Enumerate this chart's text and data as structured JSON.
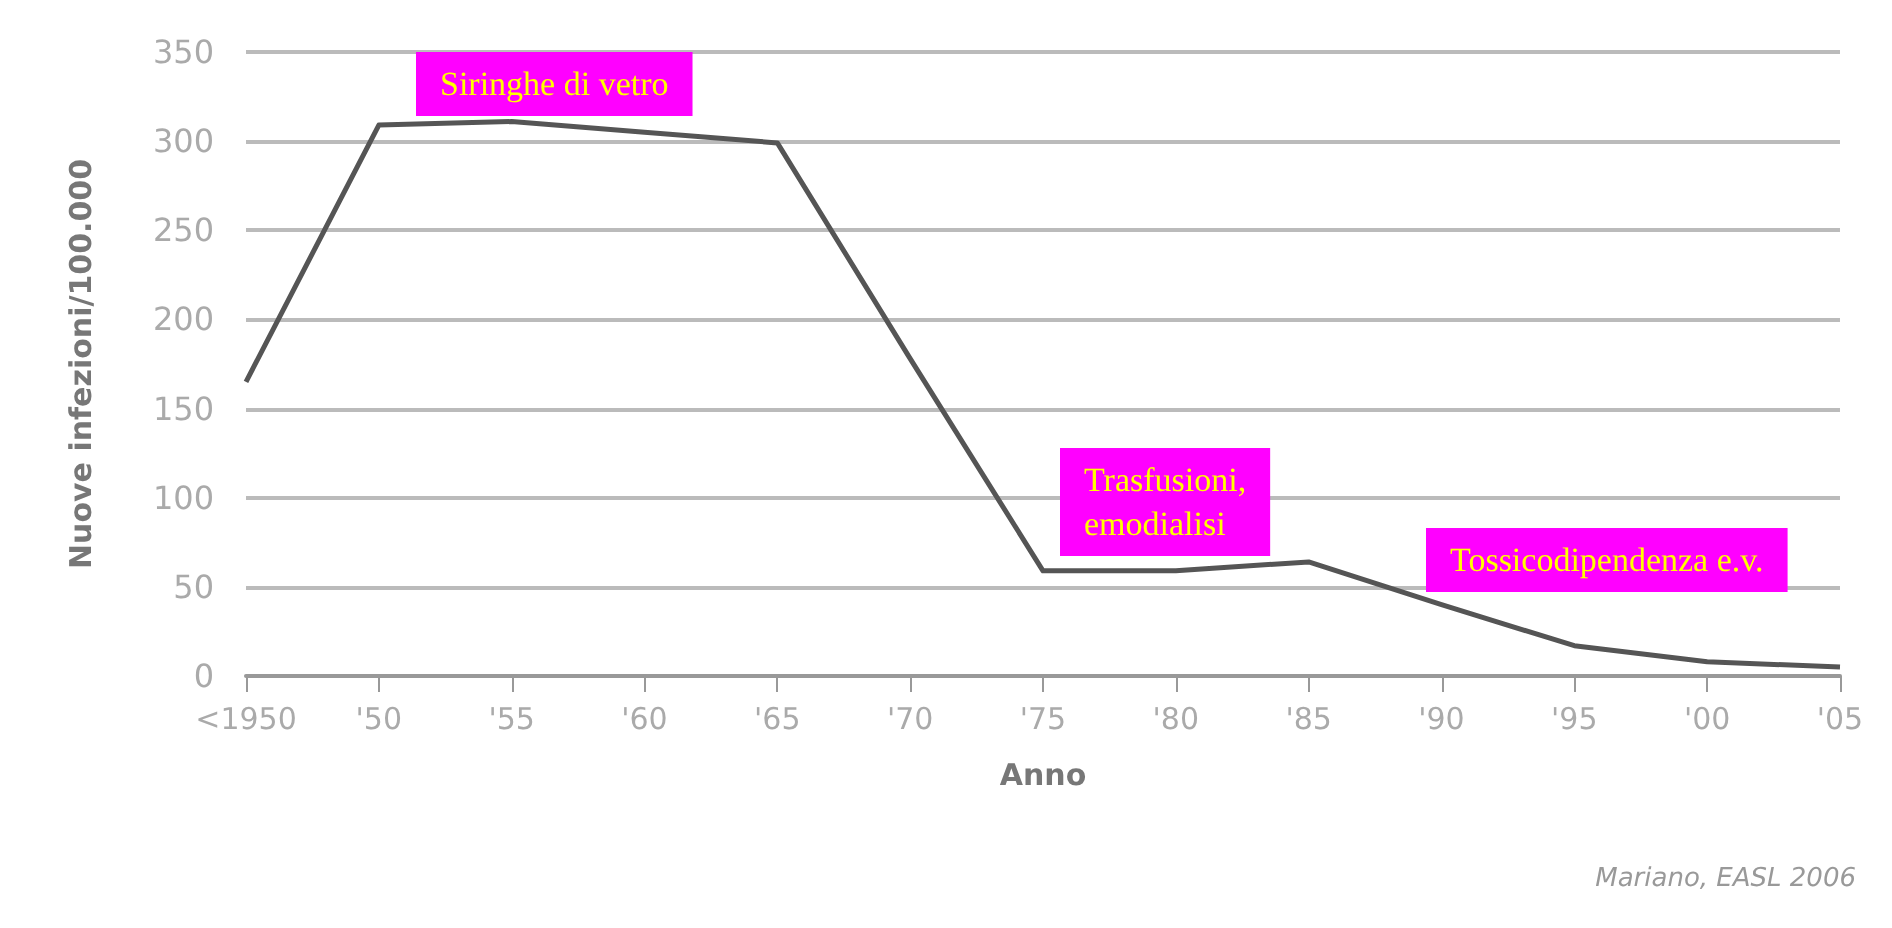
{
  "chart_data": {
    "type": "line",
    "xlabel": "Anno",
    "ylabel": "Nuove infezioni/100.000",
    "categories": [
      "<1950",
      "'50",
      "'55",
      "'60",
      "'65",
      "'70",
      "'75",
      "'80",
      "'85",
      "'90",
      "'95",
      "'00",
      "'05"
    ],
    "series": [
      {
        "color": "#555555",
        "values": [
          165,
          309,
          311,
          305,
          299,
          178,
          59,
          59,
          64,
          40,
          17,
          8,
          5
        ]
      }
    ],
    "ylim": [
      0,
      350
    ],
    "yticks": [
      0,
      50,
      100,
      150,
      200,
      250,
      300,
      350
    ],
    "grid": "y",
    "marker": "none",
    "line_style": "solid",
    "annotations": [
      "Siringhe di vetro",
      "Trasfusioni,\nemodialisi",
      "Tossicodipendenza e.v.",
      "Mariano, EASL 2006"
    ]
  }
}
